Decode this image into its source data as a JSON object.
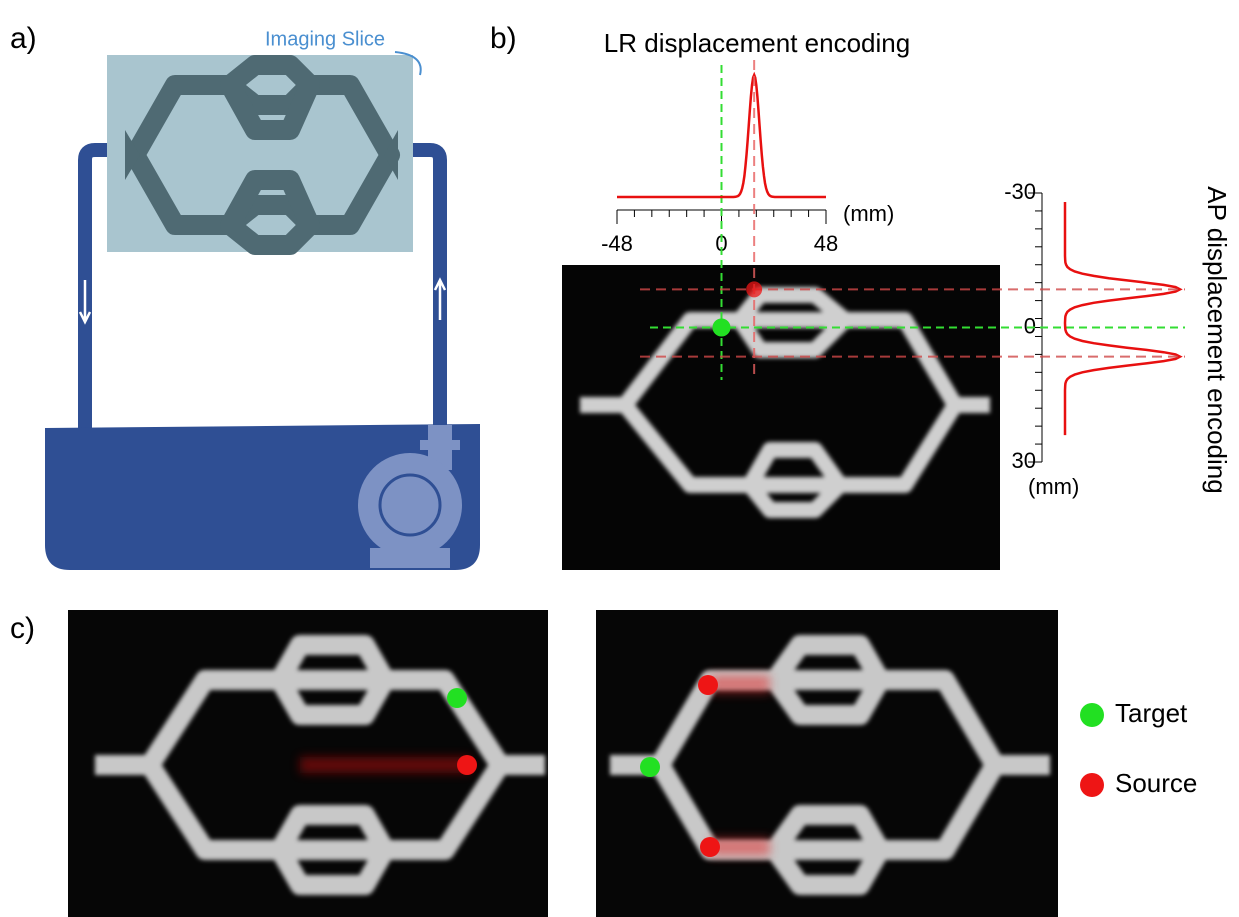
{
  "panels": {
    "a": {
      "label": "a)",
      "slice_label": "Imaging Slice"
    },
    "b": {
      "label": "b)",
      "lr_plot": {
        "title": "LR displacement encoding",
        "unit": "(mm)",
        "xlim": [
          -48,
          48
        ],
        "xticks": [
          -48,
          0,
          48
        ],
        "peaks": [
          15
        ]
      },
      "ap_plot": {
        "title": "AP displacement encoding",
        "unit": "(mm)",
        "ylim": [
          -30,
          30
        ],
        "yticks": [
          -30,
          0,
          30
        ],
        "peaks": [
          -8.5,
          6.5
        ]
      }
    },
    "c": {
      "label": "c)",
      "legend": [
        {
          "name": "Target",
          "color": "#22e022"
        },
        {
          "name": "Source",
          "color": "#ee1515"
        }
      ]
    }
  }
}
